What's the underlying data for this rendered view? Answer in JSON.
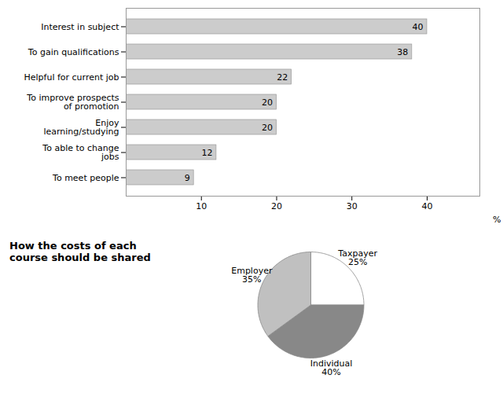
{
  "chart_data": [
    {
      "type": "bar",
      "orientation": "horizontal",
      "categories": [
        "Interest in subject",
        "To gain qualifications",
        "Helpful for current job",
        "To improve prospects\nof promotion",
        "Enjoy\nlearning/studying",
        "To able to change\njobs",
        "To meet people"
      ],
      "values": [
        40,
        38,
        22,
        20,
        20,
        12,
        9
      ],
      "color": "#cccccc",
      "xlim": [
        0,
        47
      ],
      "xticks": [
        10,
        20,
        30,
        40
      ],
      "xlabel": "%",
      "data_labels": true
    },
    {
      "type": "pie",
      "title": "How the costs of each\ncourse should be shared",
      "categories": [
        "Taxpayer",
        "Individual",
        "Employer"
      ],
      "values": [
        25,
        40,
        35
      ],
      "value_labels": [
        "25%",
        "40%",
        "35%"
      ],
      "colors": [
        "#ffffff",
        "#888888",
        "#c0c0c0"
      ],
      "data_labels": true
    }
  ]
}
